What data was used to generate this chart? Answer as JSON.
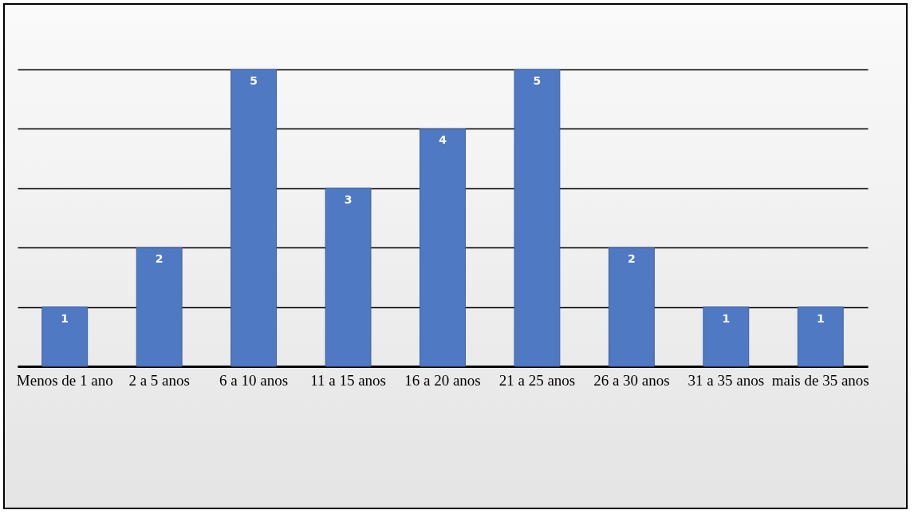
{
  "chart_data": {
    "type": "bar",
    "categories": [
      "Menos de 1 ano",
      "2 a 5 anos",
      "6 a 10 anos",
      "11 a 15 anos",
      "16 a 20 anos",
      "21 a 25 anos",
      "26 a 30 anos",
      "31 a 35 anos",
      "mais de 35 anos"
    ],
    "values": [
      1,
      2,
      5,
      3,
      4,
      5,
      2,
      1,
      1
    ],
    "color": "#4f79c3",
    "data_labels": true,
    "yticks": [
      {
        "value": 0,
        "label": null
      },
      {
        "value": 1,
        "label": null
      },
      {
        "value": 2,
        "label": null
      },
      {
        "value": 3,
        "label": null
      },
      {
        "value": 4,
        "label": null
      },
      {
        "value": 5,
        "label": null
      }
    ],
    "tick_labels": "x",
    "grid": "y"
  }
}
